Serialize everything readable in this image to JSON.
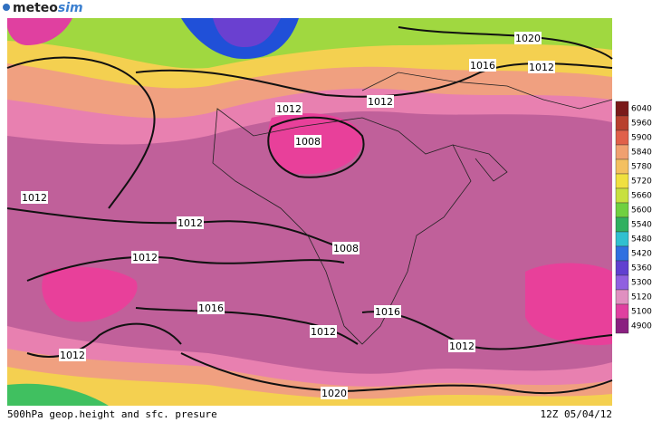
{
  "logo": {
    "part1": "meteo",
    "part2": "sim"
  },
  "isobar_labels": [
    "1020",
    "1016",
    "1012",
    "1012",
    "1012",
    "1008",
    "1012",
    "1012",
    "1012",
    "1008",
    "1016",
    "1016",
    "1012",
    "1012",
    "1012",
    "1020"
  ],
  "colorbar": {
    "labels": [
      "6040",
      "5960",
      "5900",
      "5840",
      "5780",
      "5720",
      "5660",
      "5600",
      "5540",
      "5480",
      "5420",
      "5360",
      "5300",
      "5120",
      "5100",
      "4900"
    ],
    "colors": [
      "#7a1a1a",
      "#b8402e",
      "#e0604a",
      "#f0a070",
      "#f4c060",
      "#f0e040",
      "#c8e040",
      "#70d040",
      "#30b060",
      "#30c0d0",
      "#3070e0",
      "#6040d0",
      "#9060e0",
      "#e090c0",
      "#e040a0",
      "#8a2080"
    ]
  },
  "footer": {
    "caption": "500hPa geop.height and sfc. presure",
    "timestamp": "12Z 05/04/12"
  }
}
